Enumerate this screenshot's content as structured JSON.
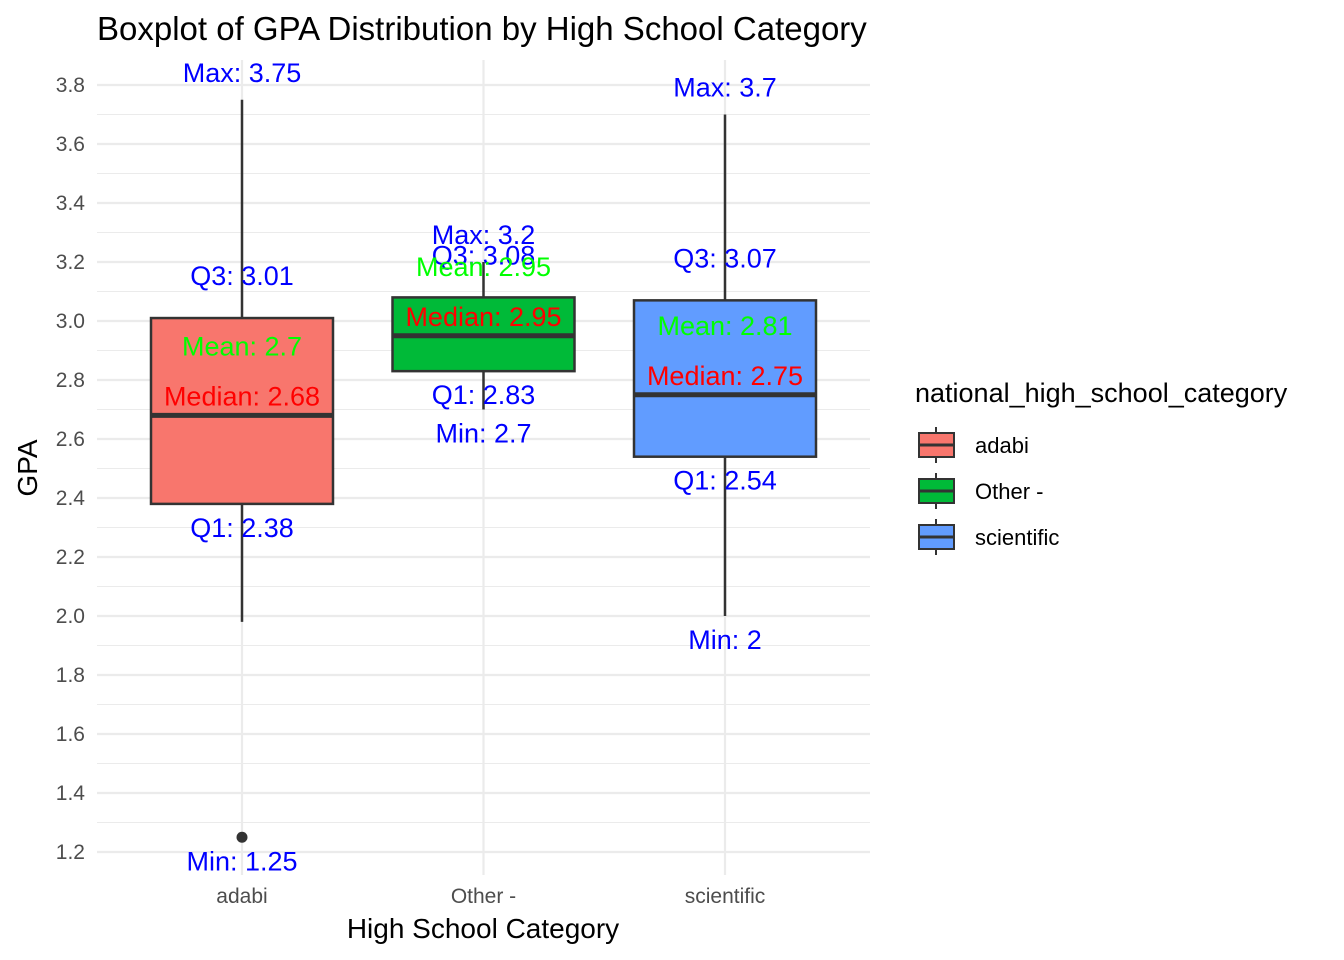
{
  "chart_data": {
    "type": "boxplot",
    "title": "Boxplot of GPA Distribution by High School Category",
    "xlabel": "High School Category",
    "ylabel": "GPA",
    "ylim": [
      1.15,
      3.9
    ],
    "yticks": [
      1.2,
      1.4,
      1.6,
      1.8,
      2.0,
      2.2,
      2.4,
      2.6,
      2.8,
      3.0,
      3.2,
      3.4,
      3.6,
      3.8
    ],
    "ytick_labels": [
      "1.2",
      "1.4",
      "1.6",
      "1.8",
      "2.0",
      "2.2",
      "2.4",
      "2.6",
      "2.8",
      "3.0",
      "3.2",
      "3.4",
      "3.6",
      "3.8"
    ],
    "grid": true,
    "legend_title": "national_high_school_category",
    "legend_position": "right",
    "categories": [
      "adabi",
      "Other -",
      "scientific"
    ],
    "series": [
      {
        "name": "adabi",
        "color": "#F8766D",
        "whisker_low": 1.98,
        "q1": 2.38,
        "median": 2.68,
        "q3": 3.01,
        "whisker_high": 3.75,
        "outliers": [
          1.25
        ],
        "labels": {
          "max": "Max: 3.75",
          "q3": "Q3: 3.01",
          "mean": "Mean: 2.7",
          "median": "Median: 2.68",
          "q1": "Q1: 2.38",
          "min": "Min: 1.25"
        }
      },
      {
        "name": "Other -",
        "color": "#00BA38",
        "whisker_low": 2.7,
        "q1": 2.83,
        "median": 2.95,
        "q3": 3.08,
        "whisker_high": 3.2,
        "outliers": [],
        "labels": {
          "max": "Max: 3.2",
          "q3": "Q3: 3.08",
          "mean": "Mean: 2.95",
          "median": "Median: 2.95",
          "q1": "Q1: 2.83",
          "min": "Min: 2.7"
        }
      },
      {
        "name": "scientific",
        "color": "#619CFF",
        "whisker_low": 2.0,
        "q1": 2.54,
        "median": 2.75,
        "q3": 3.07,
        "whisker_high": 3.7,
        "outliers": [],
        "labels": {
          "max": "Max: 3.7",
          "q3": "Q3: 3.07",
          "mean": "Mean: 2.81",
          "median": "Median: 2.75",
          "q1": "Q1: 2.54",
          "min": "Min: 2"
        }
      }
    ],
    "annotation_colors": {
      "minmax_quartiles": "#0000FF",
      "mean": "#00FF00",
      "median": "#FF0000"
    }
  }
}
